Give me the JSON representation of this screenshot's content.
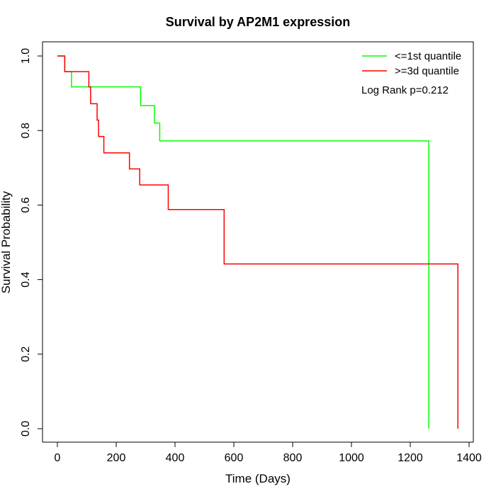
{
  "chart_data": {
    "type": "line",
    "subtype": "kaplan-meier step",
    "title": "Survival by AP2M1 expression",
    "xlabel": "Time (Days)",
    "ylabel": "Survival Probability",
    "xlim": [
      0,
      1400
    ],
    "ylim": [
      0,
      1
    ],
    "x_ticks": [
      "0",
      "200",
      "400",
      "600",
      "800",
      "1000",
      "1200",
      "1400"
    ],
    "y_ticks": [
      "0.0",
      "0.2",
      "0.4",
      "0.6",
      "0.8",
      "1.0"
    ],
    "grid": false,
    "legend_position": "top-right",
    "annotation": "Log Rank p=0.212",
    "series": [
      {
        "name": "<=1st quantile",
        "color": "#00ff00",
        "steps": [
          [
            0,
            1.0
          ],
          [
            25,
            0.958
          ],
          [
            48,
            0.917
          ],
          [
            283,
            0.867
          ],
          [
            330,
            0.82
          ],
          [
            348,
            0.772
          ],
          [
            1263,
            0.0
          ]
        ]
      },
      {
        "name": ">=3d quantile",
        "color": "#ff0000",
        "steps": [
          [
            0,
            1.0
          ],
          [
            25,
            0.958
          ],
          [
            107,
            0.917
          ],
          [
            113,
            0.872
          ],
          [
            135,
            0.828
          ],
          [
            140,
            0.784
          ],
          [
            158,
            0.74
          ],
          [
            245,
            0.697
          ],
          [
            280,
            0.654
          ],
          [
            377,
            0.588
          ],
          [
            567,
            0.442
          ],
          [
            1362,
            0.0
          ]
        ]
      }
    ]
  }
}
